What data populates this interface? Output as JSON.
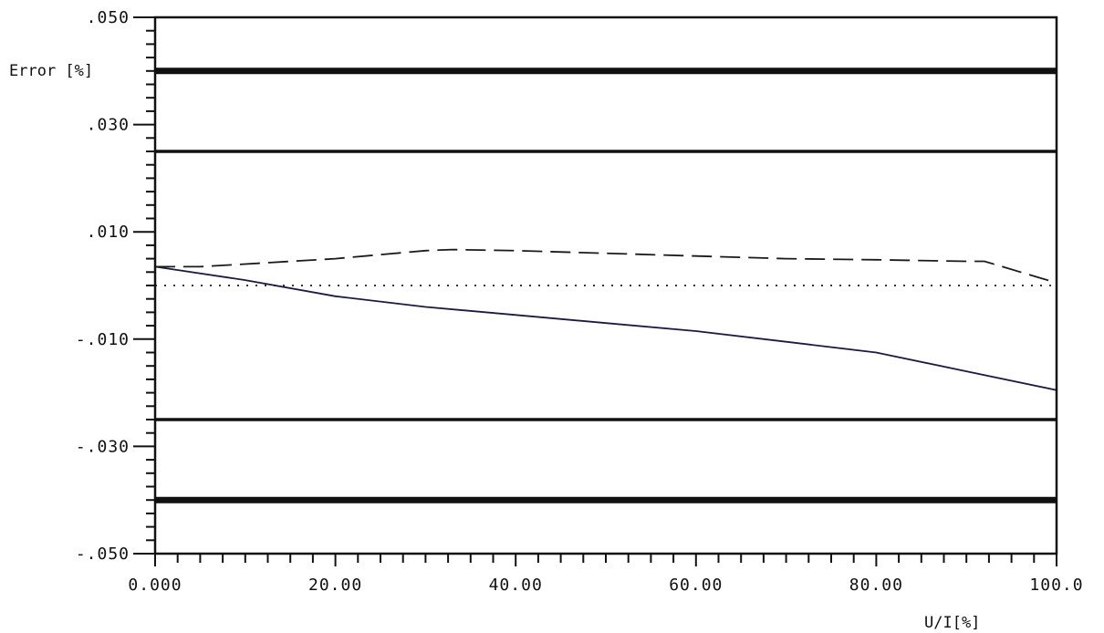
{
  "chart_data": {
    "type": "line",
    "ylabel": "Error [%]",
    "xlabel": "U/I[%]",
    "xlim": [
      0,
      100
    ],
    "ylim": [
      -0.05,
      0.05
    ],
    "x_tick_labels": [
      {
        "value": 0,
        "label": "0.000"
      },
      {
        "value": 20,
        "label": "20.00"
      },
      {
        "value": 40,
        "label": "40.00"
      },
      {
        "value": 60,
        "label": "60.00"
      },
      {
        "value": 80,
        "label": "80.00"
      },
      {
        "value": 100,
        "label": "100.0"
      }
    ],
    "y_tick_labels": [
      {
        "value": 0.05,
        "label": ".050"
      },
      {
        "value": 0.03,
        "label": ".030"
      },
      {
        "value": 0.01,
        "label": ".010"
      },
      {
        "value": -0.01,
        "label": "-.010"
      },
      {
        "value": -0.03,
        "label": "-.030"
      },
      {
        "value": -0.05,
        "label": "-.050"
      }
    ],
    "x_minor_step": 2.5,
    "y_minor_step": 0.0025,
    "limit_lines": [
      {
        "y": 0.04,
        "style": "thick"
      },
      {
        "y": 0.025,
        "style": "medium"
      },
      {
        "y": -0.025,
        "style": "medium"
      },
      {
        "y": -0.04,
        "style": "thick"
      }
    ],
    "series": [
      {
        "style": "solid",
        "color": "#1a1a4a",
        "points": [
          [
            0,
            0.0035
          ],
          [
            10,
            0.001
          ],
          [
            20,
            -0.002
          ],
          [
            30,
            -0.004
          ],
          [
            40,
            -0.0055
          ],
          [
            50,
            -0.007
          ],
          [
            60,
            -0.0085
          ],
          [
            70,
            -0.0105
          ],
          [
            80,
            -0.0125
          ],
          [
            90,
            -0.016
          ],
          [
            100,
            -0.0195
          ]
        ]
      },
      {
        "style": "dashed",
        "color": "#1a1a1a",
        "points": [
          [
            0,
            0.0035
          ],
          [
            5,
            0.0035
          ],
          [
            10,
            0.004
          ],
          [
            20,
            0.005
          ],
          [
            30,
            0.0065
          ],
          [
            33,
            0.0067
          ],
          [
            40,
            0.0065
          ],
          [
            50,
            0.006
          ],
          [
            60,
            0.0055
          ],
          [
            70,
            0.005
          ],
          [
            80,
            0.0048
          ],
          [
            90,
            0.0045
          ],
          [
            92,
            0.0045
          ],
          [
            100,
            0.0005
          ]
        ]
      },
      {
        "style": "dotted",
        "color": "#1a1a1a",
        "points": [
          [
            0,
            0.0
          ],
          [
            100,
            0.0
          ]
        ]
      }
    ]
  }
}
